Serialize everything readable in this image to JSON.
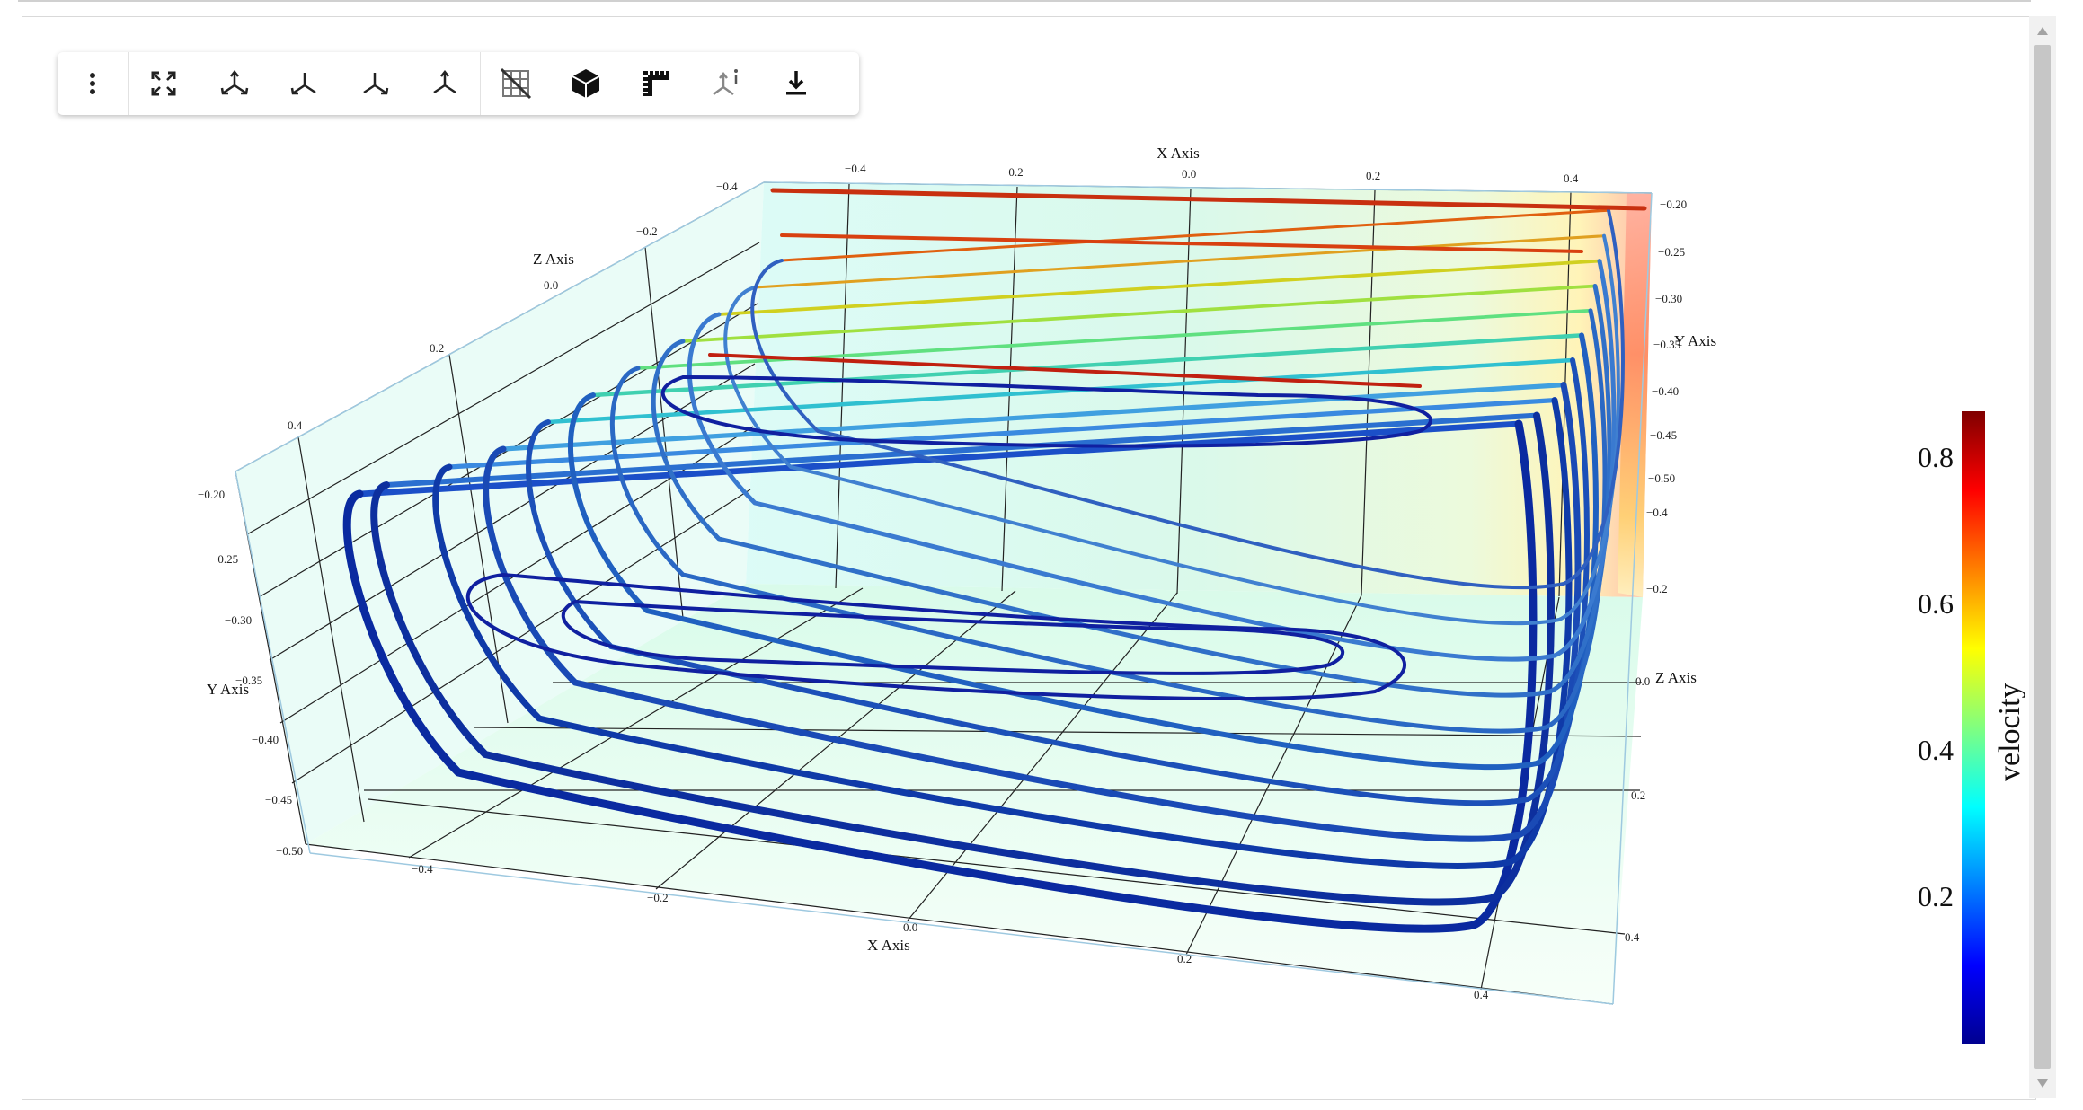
{
  "toolbar": {
    "buttons": [
      {
        "name": "more-options-icon"
      },
      {
        "name": "fullscreen-icon"
      },
      {
        "name": "iso-view-icon"
      },
      {
        "name": "xy-view-icon"
      },
      {
        "name": "xz-view-icon"
      },
      {
        "name": "yz-view-icon"
      },
      {
        "name": "toggle-grid-icon"
      },
      {
        "name": "toggle-bounds-icon"
      },
      {
        "name": "toggle-ruler-icon"
      },
      {
        "name": "axes-info-icon"
      },
      {
        "name": "download-icon"
      }
    ]
  },
  "scene": {
    "x_axis": {
      "label": "X Axis",
      "top_ticks": [
        "−0.4",
        "−0.2",
        "0.0",
        "0.2",
        "0.4"
      ],
      "bottom_ticks": [
        "−0.4",
        "−0.2",
        "0.0",
        "0.2",
        "0.4"
      ]
    },
    "y_axis": {
      "label": "Y Axis",
      "left_ticks": [
        "−0.20",
        "−0.25",
        "−0.30",
        "−0.35",
        "−0.40",
        "−0.45",
        "−0.50"
      ],
      "right_ticks": [
        "−0.20",
        "−0.25",
        "−0.30",
        "−0.35",
        "−0.40",
        "−0.45",
        "−0.50"
      ]
    },
    "z_axis": {
      "label": "Z Axis",
      "left_ticks": [
        "−0.4",
        "−0.2",
        "0.0",
        "0.2",
        "0.4"
      ],
      "right_ticks": [
        "−0.4",
        "−0.2",
        "0.0",
        "0.2",
        "0.4"
      ]
    }
  },
  "colorbar": {
    "title": "velocity",
    "ticks": [
      "0.8",
      "0.6",
      "0.4",
      "0.2"
    ],
    "colorscale": [
      "#00008f",
      "#0000ff",
      "#0080ff",
      "#00ffff",
      "#80ff80",
      "#ffff00",
      "#ff8000",
      "#ff0000",
      "#800000"
    ]
  }
}
